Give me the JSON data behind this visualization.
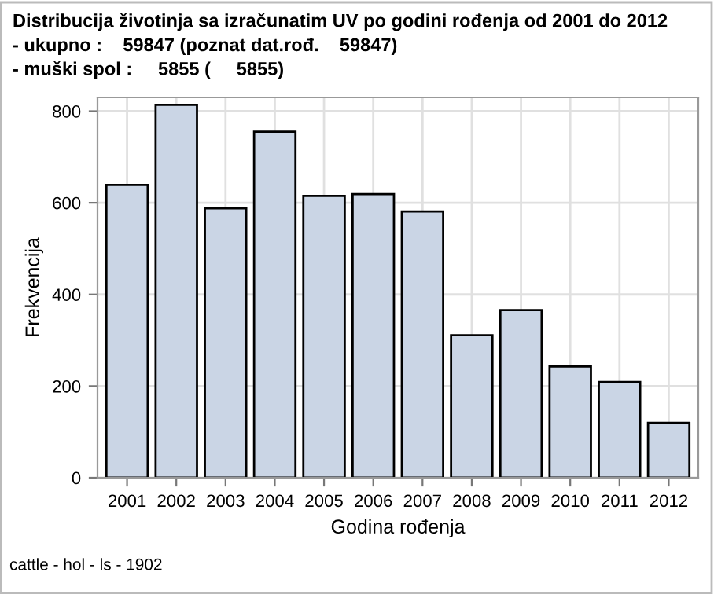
{
  "chart_data": {
    "type": "bar",
    "title": "Distribucija životinja sa izračunatim UV po godini rođenja od 2001 do 2012",
    "subtitle": "- ukupno :    59847 (poznat dat.rođ.    59847)\n- muški spol :     5855 (     5855)",
    "xlabel": "Godina rođenja",
    "ylabel": "Frekvencija",
    "categories": [
      "2001",
      "2002",
      "2003",
      "2004",
      "2005",
      "2006",
      "2007",
      "2008",
      "2009",
      "2010",
      "2011",
      "2012"
    ],
    "values": [
      639,
      814,
      588,
      755,
      615,
      619,
      581,
      311,
      366,
      243,
      209,
      120
    ],
    "color": "#cad5e5",
    "ylim": [
      0,
      830
    ],
    "yticks": [
      0,
      200,
      400,
      600,
      800
    ],
    "grid": true,
    "annotations": [
      "cattle - hol - ls - 1902"
    ]
  }
}
